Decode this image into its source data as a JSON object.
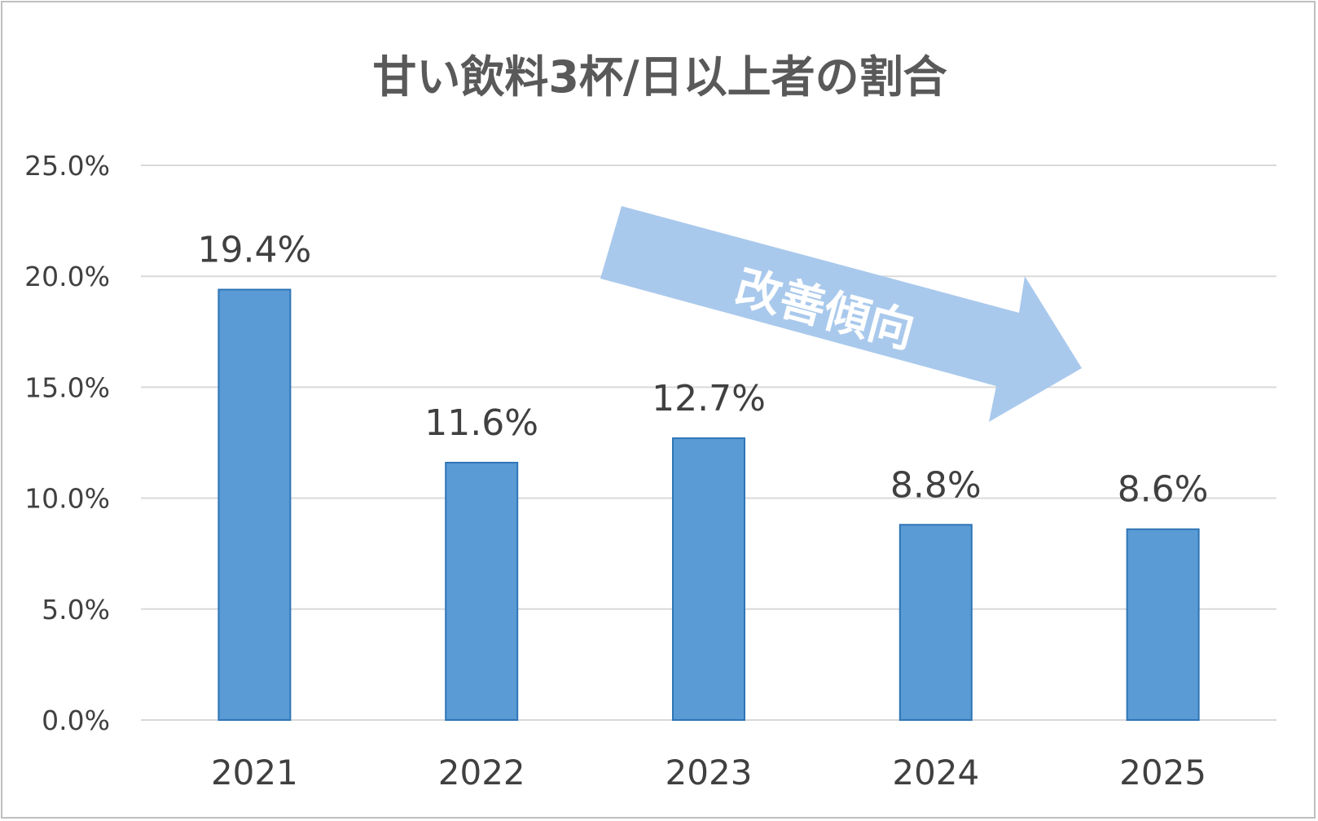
{
  "chart_data": {
    "type": "bar",
    "title": "甘い飲料3杯/日以上者の割合",
    "categories": [
      "2021",
      "2022",
      "2023",
      "2024",
      "2025"
    ],
    "values": [
      19.4,
      11.6,
      12.7,
      8.8,
      8.6
    ],
    "data_labels": [
      "19.4%",
      "11.6%",
      "12.7%",
      "8.8%",
      "8.6%"
    ],
    "y_ticks": [
      "0.0%",
      "5.0%",
      "10.0%",
      "15.0%",
      "20.0%",
      "25.0%"
    ],
    "ylim": [
      0,
      25
    ],
    "grid": true,
    "annotation": "改善傾向",
    "colors": {
      "bar_fill": "#5b9bd5",
      "bar_edge": "#2e75b6",
      "arrow": "#a9c9ec",
      "gridline": "#d9d9d9",
      "text": "#404040",
      "title": "#595959"
    }
  }
}
